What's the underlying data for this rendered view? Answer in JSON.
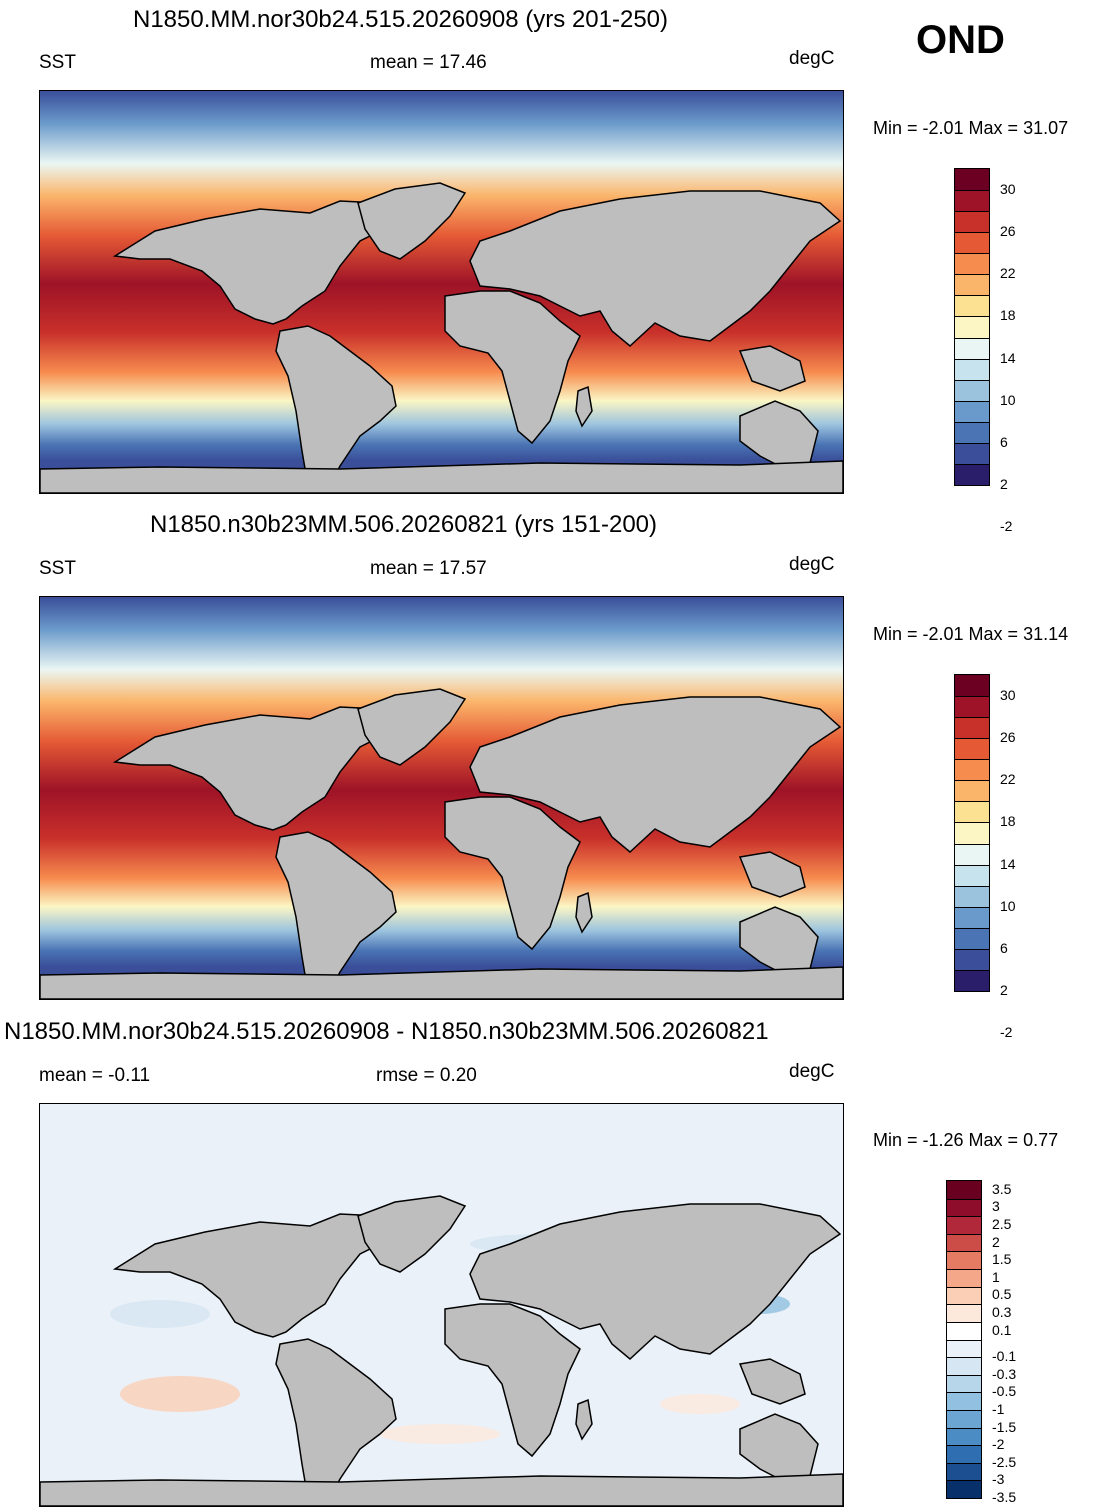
{
  "season": "OND",
  "colors": {
    "land": "#bebebe",
    "sst_scale": [
      "#2a1e6b",
      "#3a4e99",
      "#4a74b4",
      "#6a9acb",
      "#9cc3de",
      "#c7e3ee",
      "#eaf6f3",
      "#fbf6c4",
      "#fde192",
      "#fbb56b",
      "#f78c4f",
      "#e55a35",
      "#c8302a",
      "#9e1327",
      "#6b0023"
    ],
    "diff_scale": [
      "#08306b",
      "#1b4f92",
      "#2f6eb0",
      "#4a8cc3",
      "#6ca5d2",
      "#91c0e0",
      "#b7d6ea",
      "#d6e6f2",
      "#eaf1f8",
      "#ffffff",
      "#fde9dc",
      "#fbcfb6",
      "#f5a889",
      "#e57b63",
      "#cc4c47",
      "#b0283a",
      "#8d0d2a",
      "#6a0020"
    ]
  },
  "panels": [
    {
      "title": "N1850.MM.nor30b24.515.20260908 (yrs 201-250)",
      "left_label": "SST",
      "center_label": "mean =  17.46",
      "units": "degC",
      "minmax": "Min =  -2.01 Max =  31.07",
      "scale": "sst",
      "ticks": [
        "30",
        "26",
        "22",
        "18",
        "14",
        "10",
        "6",
        "2",
        "-2"
      ]
    },
    {
      "title": "N1850.n30b23MM.506.20260821 (yrs 151-200)",
      "left_label": "SST",
      "center_label": "mean =  17.57",
      "units": "degC",
      "minmax": "Min =  -2.01 Max =  31.14",
      "scale": "sst",
      "ticks": [
        "30",
        "26",
        "22",
        "18",
        "14",
        "10",
        "6",
        "2",
        "-2"
      ]
    },
    {
      "title": "N1850.MM.nor30b24.515.20260908 - N1850.n30b23MM.506.20260821",
      "left_label": "mean =  -0.11",
      "center_label": "rmse =   0.20",
      "units": "degC",
      "minmax": "Min =  -1.26 Max =   0.77",
      "scale": "diff",
      "ticks": [
        "3.5",
        "3",
        "2.5",
        "2",
        "1.5",
        "1",
        "0.5",
        "0.3",
        "0.1",
        "-0.1",
        "-0.3",
        "-0.5",
        "-1",
        "-1.5",
        "-2",
        "-2.5",
        "-3",
        "-3.5"
      ]
    }
  ]
}
